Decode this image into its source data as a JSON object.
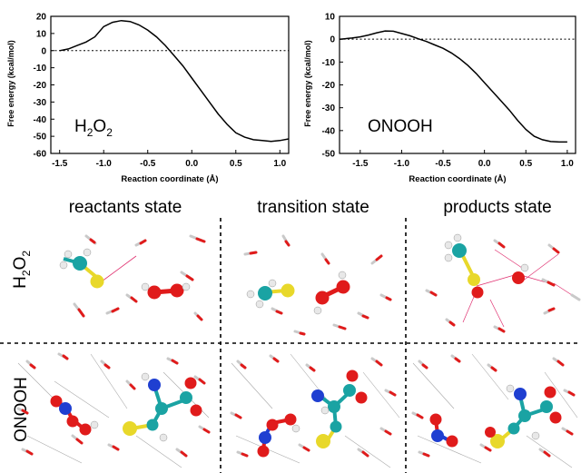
{
  "chart_data": [
    {
      "type": "line",
      "annotation": "H2O2",
      "annotation_base": "H",
      "annotation_sub1": "2",
      "annotation_mid": "O",
      "annotation_sub2": "2",
      "xlabel": "Reaction coordinate (Å)",
      "ylabel": "Free energy (kcal/mol)",
      "xlim": [
        -1.6,
        1.1
      ],
      "ylim": [
        -60,
        20
      ],
      "xticks": [
        "-1.5",
        "-1.0",
        "-0.5",
        "0.0",
        "0.5",
        "1.0"
      ],
      "xtick_values": [
        -1.5,
        -1.0,
        -0.5,
        0.0,
        0.5,
        1.0
      ],
      "yticks": [
        "20",
        "10",
        "0",
        "-10",
        "-20",
        "-30",
        "-40",
        "-50",
        "-60"
      ],
      "ytick_values": [
        20,
        10,
        0,
        -10,
        -20,
        -30,
        -40,
        -50,
        -60
      ],
      "zero_line": "dotted",
      "x": [
        -1.5,
        -1.4,
        -1.3,
        -1.2,
        -1.1,
        -1.0,
        -0.9,
        -0.8,
        -0.7,
        -0.6,
        -0.5,
        -0.4,
        -0.3,
        -0.2,
        -0.1,
        0.0,
        0.1,
        0.2,
        0.3,
        0.4,
        0.5,
        0.6,
        0.7,
        0.8,
        0.9,
        1.0,
        1.1
      ],
      "y": [
        0,
        1,
        3,
        5,
        8,
        14,
        16.5,
        17.5,
        17,
        15,
        12,
        8,
        3,
        -3,
        -9,
        -16,
        -23,
        -30,
        -37,
        -43,
        -48,
        -50.5,
        -52,
        -52.5,
        -53,
        -52.5,
        -51.5
      ]
    },
    {
      "type": "line",
      "annotation": "ONOOH",
      "xlabel": "Reaction coordinate (Å)",
      "ylabel": "Free energy (kcal/mol)",
      "xlim": [
        -1.75,
        1.1
      ],
      "ylim": [
        -50,
        10
      ],
      "xticks": [
        "-1.5",
        "-1.0",
        "-0.5",
        "0.0",
        "0.5",
        "1.0"
      ],
      "xtick_values": [
        -1.5,
        -1.0,
        -0.5,
        0.0,
        0.5,
        1.0
      ],
      "yticks": [
        "10",
        "0",
        "-10",
        "-20",
        "-30",
        "-40",
        "-50"
      ],
      "ytick_values": [
        10,
        0,
        -10,
        -20,
        -30,
        -40,
        -50
      ],
      "zero_line": "dotted",
      "x": [
        -1.75,
        -1.6,
        -1.5,
        -1.4,
        -1.3,
        -1.2,
        -1.1,
        -1.0,
        -0.9,
        -0.8,
        -0.7,
        -0.6,
        -0.5,
        -0.4,
        -0.3,
        -0.2,
        -0.1,
        0.0,
        0.1,
        0.2,
        0.3,
        0.4,
        0.5,
        0.6,
        0.7,
        0.8,
        0.9,
        1.0
      ],
      "y": [
        0,
        0.5,
        1,
        1.8,
        2.8,
        3.6,
        3.5,
        2.5,
        1.5,
        0.2,
        -1,
        -2.5,
        -4,
        -6,
        -8.5,
        -11.5,
        -15,
        -19,
        -23,
        -27,
        -31,
        -35.5,
        -39.5,
        -42.5,
        -44,
        -44.8,
        -45,
        -45
      ]
    }
  ],
  "states": {
    "reactants": "reactants state",
    "transition": "transition state",
    "products": "products state"
  },
  "rows": {
    "h2o2": "H2O2",
    "h2o2_base": "H",
    "h2o2_sub1": "2",
    "h2o2_mid": "O",
    "h2o2_sub2": "2",
    "onooh": "ONOOH"
  },
  "colors": {
    "carbon": "#1aa3a3",
    "sulfur": "#e8d82a",
    "oxygen": "#e01b1b",
    "nitrogen": "#1f3fd1",
    "hydrogen": "#eeeeee"
  }
}
